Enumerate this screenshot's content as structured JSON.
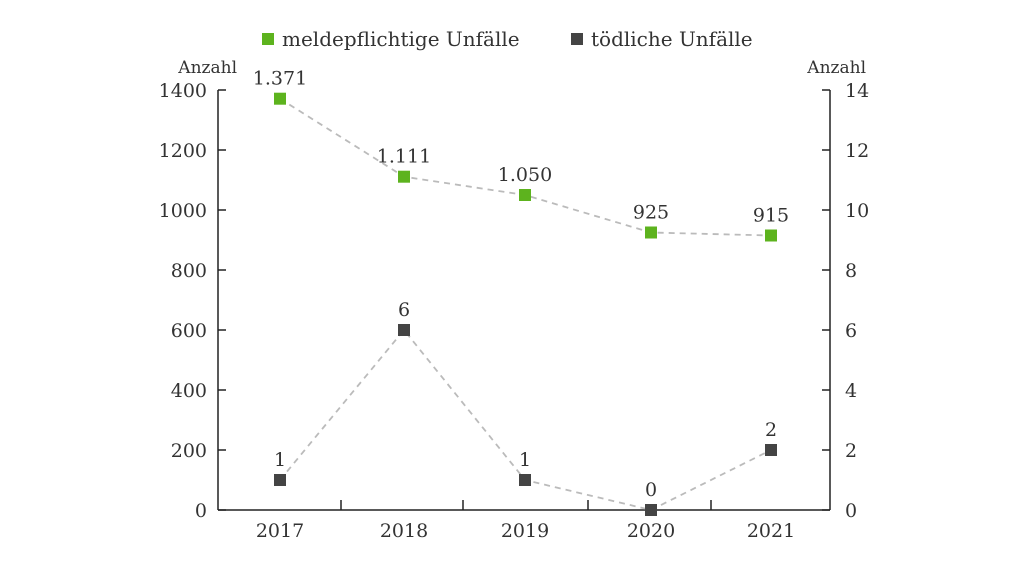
{
  "chart_data": {
    "type": "line",
    "categories": [
      "2017",
      "2018",
      "2019",
      "2020",
      "2021"
    ],
    "series": [
      {
        "name": "meldepflichtige Unfälle",
        "axis": "left",
        "color": "#5db31e",
        "values": [
          1371,
          1111,
          1050,
          925,
          915
        ],
        "labels": [
          "1.371",
          "1.111",
          "1.050",
          "925",
          "915"
        ]
      },
      {
        "name": "tödliche Unfälle",
        "axis": "right",
        "color": "#444444",
        "values": [
          1,
          6,
          1,
          0,
          2
        ],
        "labels": [
          "1",
          "6",
          "1",
          "0",
          "2"
        ]
      }
    ],
    "y_left": {
      "label": "Anzahl",
      "ylim": [
        0,
        1400
      ],
      "ticks": [
        "0",
        "200",
        "400",
        "600",
        "800",
        "1000",
        "1200",
        "1400"
      ]
    },
    "y_right": {
      "label": "Anzahl",
      "ylim": [
        0,
        14
      ],
      "ticks": [
        "0",
        "2",
        "4",
        "6",
        "8",
        "10",
        "12",
        "14"
      ]
    },
    "grid": false,
    "legend_position": "top-center",
    "line_style": "dashed",
    "line_color": "#bbbbbb",
    "marker": "square"
  }
}
